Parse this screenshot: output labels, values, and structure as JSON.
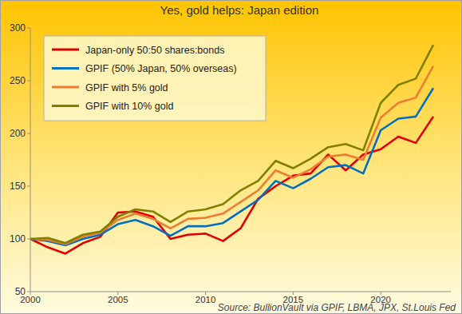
{
  "chart_data": {
    "type": "line",
    "title": "Yes, gold helps: Japan edition",
    "source": "Source: BullionVault via GPIF, LBMA, JPX, St.Louis Fed",
    "x": [
      2000,
      2001,
      2002,
      2003,
      2004,
      2005,
      2006,
      2007,
      2008,
      2009,
      2010,
      2011,
      2012,
      2013,
      2014,
      2015,
      2016,
      2017,
      2018,
      2019,
      2020,
      2021,
      2022,
      2023
    ],
    "series": [
      {
        "name": "Japan-only 50:50 shares:bonds",
        "color": "#e00000",
        "values": [
          100,
          92,
          86,
          96,
          102,
          125,
          126,
          121,
          100,
          104,
          105,
          98,
          110,
          138,
          150,
          160,
          162,
          180,
          165,
          180,
          185,
          197,
          191,
          216
        ]
      },
      {
        "name": "GPIF (50% Japan, 50% overseas)",
        "color": "#0070c0",
        "values": [
          100,
          98,
          94,
          100,
          104,
          114,
          118,
          112,
          103,
          112,
          112,
          115,
          126,
          137,
          155,
          148,
          157,
          168,
          170,
          162,
          203,
          214,
          216,
          243
        ]
      },
      {
        "name": "GPIF with 5% gold",
        "color": "#ed7d31",
        "values": [
          100,
          99,
          95,
          102,
          106,
          118,
          124,
          119,
          110,
          119,
          120,
          124,
          135,
          146,
          165,
          158,
          166,
          178,
          180,
          175,
          215,
          229,
          234,
          264
        ]
      },
      {
        "name": "GPIF with 10% gold",
        "color": "#808000",
        "values": [
          100,
          101,
          96,
          104,
          107,
          121,
          128,
          126,
          116,
          126,
          128,
          133,
          146,
          155,
          174,
          167,
          176,
          187,
          190,
          184,
          229,
          246,
          252,
          284
        ]
      }
    ],
    "xlim": [
      2000,
      2024
    ],
    "xticks": [
      2000,
      2005,
      2010,
      2015,
      2020
    ],
    "ylim": [
      50,
      300
    ],
    "yticks": [
      50,
      100,
      150,
      200,
      250,
      300
    ],
    "grid": false,
    "legend": "upper left"
  }
}
